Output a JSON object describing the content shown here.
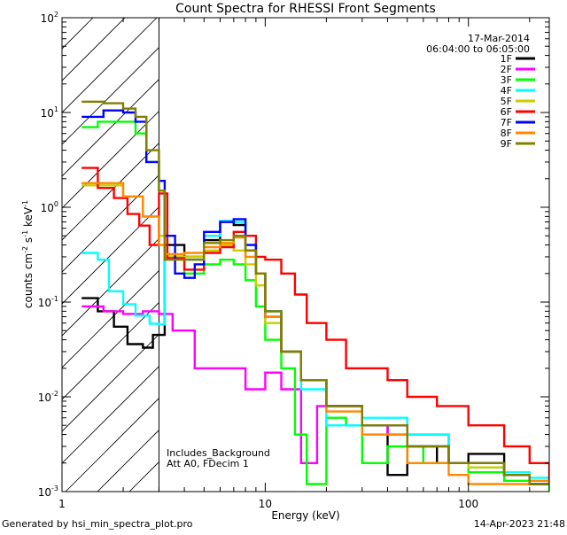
{
  "chart_data": {
    "type": "line",
    "title": "Count Spectra for RHESSI Front Segments",
    "xlabel": "Energy (keV)",
    "ylabel": "counts cm^-2 s^-1 keV^-1",
    "ylabel_parts": {
      "main": "counts cm",
      "e1": "-2",
      "mid": " s",
      "e2": "-1",
      "mid2": " keV",
      "e3": "-1"
    },
    "xscale": "log",
    "yscale": "log",
    "xlim": [
      1,
      250
    ],
    "ylim": [
      0.001,
      100
    ],
    "x_ticks": [
      {
        "value": 1,
        "label": "1"
      },
      {
        "value": 10,
        "label": "10"
      },
      {
        "value": 100,
        "label": "100"
      }
    ],
    "y_ticks": [
      {
        "value": 0.001,
        "base": "10",
        "exp": "-3"
      },
      {
        "value": 0.01,
        "base": "10",
        "exp": "-2"
      },
      {
        "value": 0.1,
        "base": "10",
        "exp": "-1"
      },
      {
        "value": 1,
        "base": "10",
        "exp": "0"
      },
      {
        "value": 10,
        "base": "10",
        "exp": "1"
      },
      {
        "value": 100,
        "base": "10",
        "exp": "2"
      }
    ],
    "date": "17-Mar-2014",
    "time_range": "06:04:00 to 06:05:00",
    "hatched_region_max_energy": 3,
    "annotations": [
      "Includes_Background",
      "Att A0, FDecim 1"
    ],
    "legend_position": "top-right",
    "series": [
      {
        "name": "1F",
        "color": "#000000",
        "points": [
          [
            1.25,
            0.11
          ],
          [
            1.5,
            0.08
          ],
          [
            1.8,
            0.055
          ],
          [
            2.1,
            0.036
          ],
          [
            2.5,
            0.033
          ],
          [
            2.8,
            0.045
          ],
          [
            3.2,
            0.4
          ],
          [
            4,
            0.3
          ],
          [
            5,
            0.45
          ],
          [
            6,
            0.7
          ],
          [
            7,
            0.65
          ],
          [
            8,
            0.35
          ],
          [
            9,
            0.2
          ],
          [
            10,
            0.08
          ],
          [
            12,
            0.03
          ],
          [
            15,
            0.015
          ],
          [
            20,
            0.008
          ],
          [
            30,
            0.005
          ],
          [
            40,
            0.0015
          ],
          [
            50,
            0.003
          ],
          [
            70,
            0.002
          ],
          [
            100,
            0.0025
          ],
          [
            150,
            0.0015
          ],
          [
            200,
            0.0012
          ],
          [
            250,
            0.0012
          ]
        ]
      },
      {
        "name": "2F",
        "color": "#ff00ff",
        "points": [
          [
            1.25,
            0.09
          ],
          [
            1.6,
            0.08
          ],
          [
            2,
            0.075
          ],
          [
            2.5,
            0.08
          ],
          [
            3,
            0.075
          ],
          [
            3.5,
            0.05
          ],
          [
            4,
            0.05
          ],
          [
            4.5,
            0.02
          ],
          [
            6,
            0.02
          ],
          [
            8,
            0.012
          ],
          [
            10,
            0.018
          ],
          [
            12,
            0.012
          ],
          [
            15,
            0.002
          ],
          [
            18,
            0.008
          ],
          [
            25,
            0.008
          ],
          [
            30,
            0.005
          ],
          [
            40,
            0.004
          ],
          [
            60,
            0.004
          ],
          [
            80,
            0.002
          ],
          [
            100,
            0.002
          ],
          [
            150,
            0.0015
          ],
          [
            200,
            0.0012
          ],
          [
            250,
            0.0012
          ]
        ]
      },
      {
        "name": "3F",
        "color": "#00ff00",
        "points": [
          [
            1.25,
            7
          ],
          [
            1.5,
            8
          ],
          [
            2,
            8
          ],
          [
            2.3,
            6
          ],
          [
            2.6,
            3
          ],
          [
            3,
            1.5
          ],
          [
            3.2,
            0.3
          ],
          [
            4,
            0.2
          ],
          [
            5,
            0.25
          ],
          [
            6,
            0.28
          ],
          [
            7,
            0.25
          ],
          [
            8,
            0.17
          ],
          [
            9,
            0.09
          ],
          [
            10,
            0.04
          ],
          [
            12,
            0.02
          ],
          [
            14,
            0.004
          ],
          [
            16,
            0.0012
          ],
          [
            20,
            0.006
          ],
          [
            25,
            0.005
          ],
          [
            30,
            0.002
          ],
          [
            40,
            0.003
          ],
          [
            60,
            0.002
          ],
          [
            80,
            0.002
          ],
          [
            100,
            0.0016
          ],
          [
            150,
            0.0013
          ],
          [
            200,
            0.0012
          ],
          [
            250,
            0.001
          ]
        ]
      },
      {
        "name": "4F",
        "color": "#00ffff",
        "points": [
          [
            1.25,
            0.33
          ],
          [
            1.5,
            0.28
          ],
          [
            1.7,
            0.13
          ],
          [
            2,
            0.095
          ],
          [
            2.3,
            0.072
          ],
          [
            2.7,
            0.059
          ],
          [
            3,
            0.058
          ],
          [
            3.2,
            0.3
          ],
          [
            4,
            0.28
          ],
          [
            5,
            0.5
          ],
          [
            6,
            0.72
          ],
          [
            7,
            0.7
          ],
          [
            8,
            0.4
          ],
          [
            9,
            0.2
          ],
          [
            10,
            0.08
          ],
          [
            12,
            0.03
          ],
          [
            15,
            0.012
          ],
          [
            20,
            0.005
          ],
          [
            30,
            0.006
          ],
          [
            50,
            0.004
          ],
          [
            80,
            0.002
          ],
          [
            100,
            0.0018
          ],
          [
            150,
            0.0016
          ],
          [
            200,
            0.0014
          ],
          [
            250,
            0.0013
          ]
        ]
      },
      {
        "name": "5F",
        "color": "#cccc00",
        "points": [
          [
            1.25,
            1.7
          ],
          [
            1.6,
            1.7
          ],
          [
            2,
            1.3
          ],
          [
            2.5,
            0.8
          ],
          [
            3,
            0.5
          ],
          [
            3.2,
            0.3
          ],
          [
            4,
            0.3
          ],
          [
            5,
            0.35
          ],
          [
            6,
            0.4
          ],
          [
            7,
            0.35
          ],
          [
            8,
            0.25
          ],
          [
            9,
            0.15
          ],
          [
            10,
            0.06
          ],
          [
            12,
            0.03
          ],
          [
            15,
            0.015
          ],
          [
            20,
            0.008
          ],
          [
            30,
            0.005
          ],
          [
            50,
            0.003
          ],
          [
            80,
            0.002
          ],
          [
            100,
            0.0018
          ],
          [
            150,
            0.0015
          ],
          [
            200,
            0.0013
          ],
          [
            250,
            0.0012
          ]
        ]
      },
      {
        "name": "6F",
        "color": "#ff0000",
        "points": [
          [
            1.25,
            2.6
          ],
          [
            1.5,
            1.6
          ],
          [
            1.8,
            1.25
          ],
          [
            2.1,
            0.85
          ],
          [
            2.4,
            0.64
          ],
          [
            2.7,
            0.4
          ],
          [
            3,
            1.4
          ],
          [
            3.3,
            0.29
          ],
          [
            4,
            0.22
          ],
          [
            5,
            0.33
          ],
          [
            6,
            0.38
          ],
          [
            7,
            0.55
          ],
          [
            8,
            0.5
          ],
          [
            9,
            0.3
          ],
          [
            10,
            0.28
          ],
          [
            12,
            0.2
          ],
          [
            14,
            0.12
          ],
          [
            16,
            0.06
          ],
          [
            20,
            0.04
          ],
          [
            25,
            0.02
          ],
          [
            30,
            0.02
          ],
          [
            40,
            0.015
          ],
          [
            50,
            0.01
          ],
          [
            70,
            0.008
          ],
          [
            100,
            0.005
          ],
          [
            150,
            0.003
          ],
          [
            200,
            0.002
          ],
          [
            250,
            0.0012
          ]
        ]
      },
      {
        "name": "7F",
        "color": "#0000ff",
        "points": [
          [
            1.25,
            9
          ],
          [
            1.6,
            10.5
          ],
          [
            2,
            10
          ],
          [
            2.3,
            8
          ],
          [
            2.6,
            3
          ],
          [
            3,
            1.9
          ],
          [
            3.2,
            0.5
          ],
          [
            3.6,
            0.2
          ],
          [
            4,
            0.18
          ],
          [
            4.5,
            0.25
          ],
          [
            5,
            0.55
          ],
          [
            6,
            0.7
          ],
          [
            7,
            0.75
          ],
          [
            8,
            0.4
          ],
          [
            9,
            0.2
          ],
          [
            10,
            0.07
          ],
          [
            12,
            0.03
          ],
          [
            15,
            0.015
          ],
          [
            20,
            0.008
          ],
          [
            30,
            0.005
          ],
          [
            50,
            0.003
          ],
          [
            80,
            0.002
          ],
          [
            100,
            0.002
          ],
          [
            150,
            0.0015
          ],
          [
            200,
            0.0012
          ],
          [
            250,
            0.0012
          ]
        ]
      },
      {
        "name": "8F",
        "color": "#ff8800",
        "points": [
          [
            1.25,
            1.8
          ],
          [
            1.6,
            1.8
          ],
          [
            2,
            1.3
          ],
          [
            2.5,
            0.8
          ],
          [
            3,
            0.4
          ],
          [
            3.2,
            0.32
          ],
          [
            4,
            0.33
          ],
          [
            5,
            0.38
          ],
          [
            6,
            0.42
          ],
          [
            7,
            0.48
          ],
          [
            8,
            0.3
          ],
          [
            9,
            0.2
          ],
          [
            10,
            0.07
          ],
          [
            12,
            0.03
          ],
          [
            15,
            0.015
          ],
          [
            20,
            0.007
          ],
          [
            30,
            0.004
          ],
          [
            50,
            0.002
          ],
          [
            80,
            0.0015
          ],
          [
            100,
            0.0012
          ],
          [
            150,
            0.0012
          ],
          [
            200,
            0.0013
          ],
          [
            250,
            0.0012
          ]
        ]
      },
      {
        "name": "9F",
        "color": "#808000",
        "points": [
          [
            1.25,
            13
          ],
          [
            1.6,
            12.5
          ],
          [
            2,
            11
          ],
          [
            2.3,
            9
          ],
          [
            2.6,
            4
          ],
          [
            3,
            1.5
          ],
          [
            3.2,
            0.28
          ],
          [
            4,
            0.28
          ],
          [
            5,
            0.42
          ],
          [
            6,
            0.45
          ],
          [
            7,
            0.5
          ],
          [
            8,
            0.35
          ],
          [
            9,
            0.2
          ],
          [
            10,
            0.08
          ],
          [
            12,
            0.03
          ],
          [
            15,
            0.015
          ],
          [
            20,
            0.008
          ],
          [
            30,
            0.005
          ],
          [
            50,
            0.003
          ],
          [
            80,
            0.002
          ],
          [
            100,
            0.002
          ],
          [
            150,
            0.0015
          ],
          [
            200,
            0.0012
          ],
          [
            250,
            0.0012
          ]
        ]
      }
    ]
  },
  "footer": {
    "generated_by": "Generated by hsi_min_spectra_plot.pro",
    "timestamp": "14-Apr-2023 21:48"
  }
}
